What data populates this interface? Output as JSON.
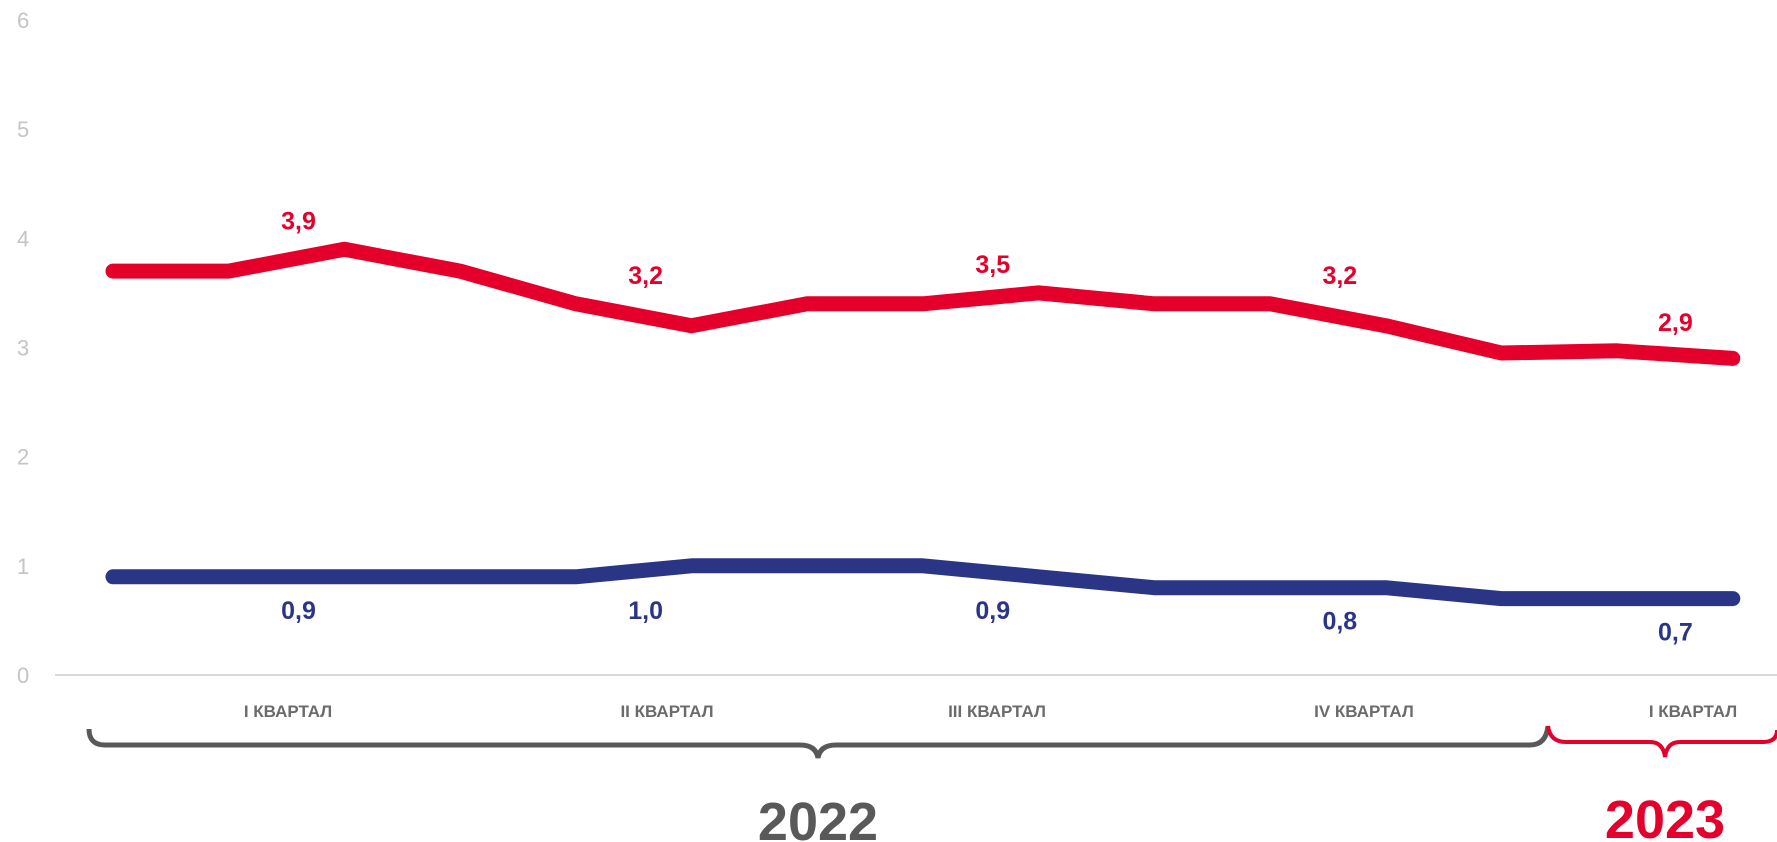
{
  "colors": {
    "red": "#e4002b",
    "blue": "#2b3586",
    "tick": "#c4c4c4",
    "quarter_label": "#6b6b6b",
    "bracket_gray": "#595959",
    "baseline": "#d9d9d9"
  },
  "chart_data": {
    "type": "line",
    "ylim": [
      0,
      6
    ],
    "yticks": [
      "0",
      "1",
      "2",
      "3",
      "4",
      "5",
      "6"
    ],
    "grid": false,
    "n_points": 15,
    "series": [
      {
        "color": "red",
        "values": [
          3.7,
          3.7,
          3.9,
          3.7,
          3.4,
          3.2,
          3.4,
          3.4,
          3.5,
          3.4,
          3.4,
          3.2,
          2.95,
          2.97,
          2.9
        ],
        "labels": [
          "3,9",
          "3,2",
          "3,5",
          "3,2",
          "2,9"
        ]
      },
      {
        "color": "blue",
        "values": [
          0.9,
          0.9,
          0.9,
          0.9,
          0.9,
          1.0,
          1.0,
          1.0,
          0.9,
          0.8,
          0.8,
          0.8,
          0.7,
          0.7,
          0.7
        ],
        "labels": [
          "0,9",
          "1,0",
          "0,9",
          "0,8",
          "0,7"
        ]
      }
    ],
    "quarter_labels": [
      "I КВАРТАЛ",
      "II КВАРТАЛ",
      "III КВАРТАЛ",
      "IV КВАРТАЛ",
      "I КВАРТАЛ"
    ],
    "years": [
      {
        "label": "2022",
        "color": "bracket_gray"
      },
      {
        "label": "2023",
        "color": "red"
      }
    ]
  }
}
